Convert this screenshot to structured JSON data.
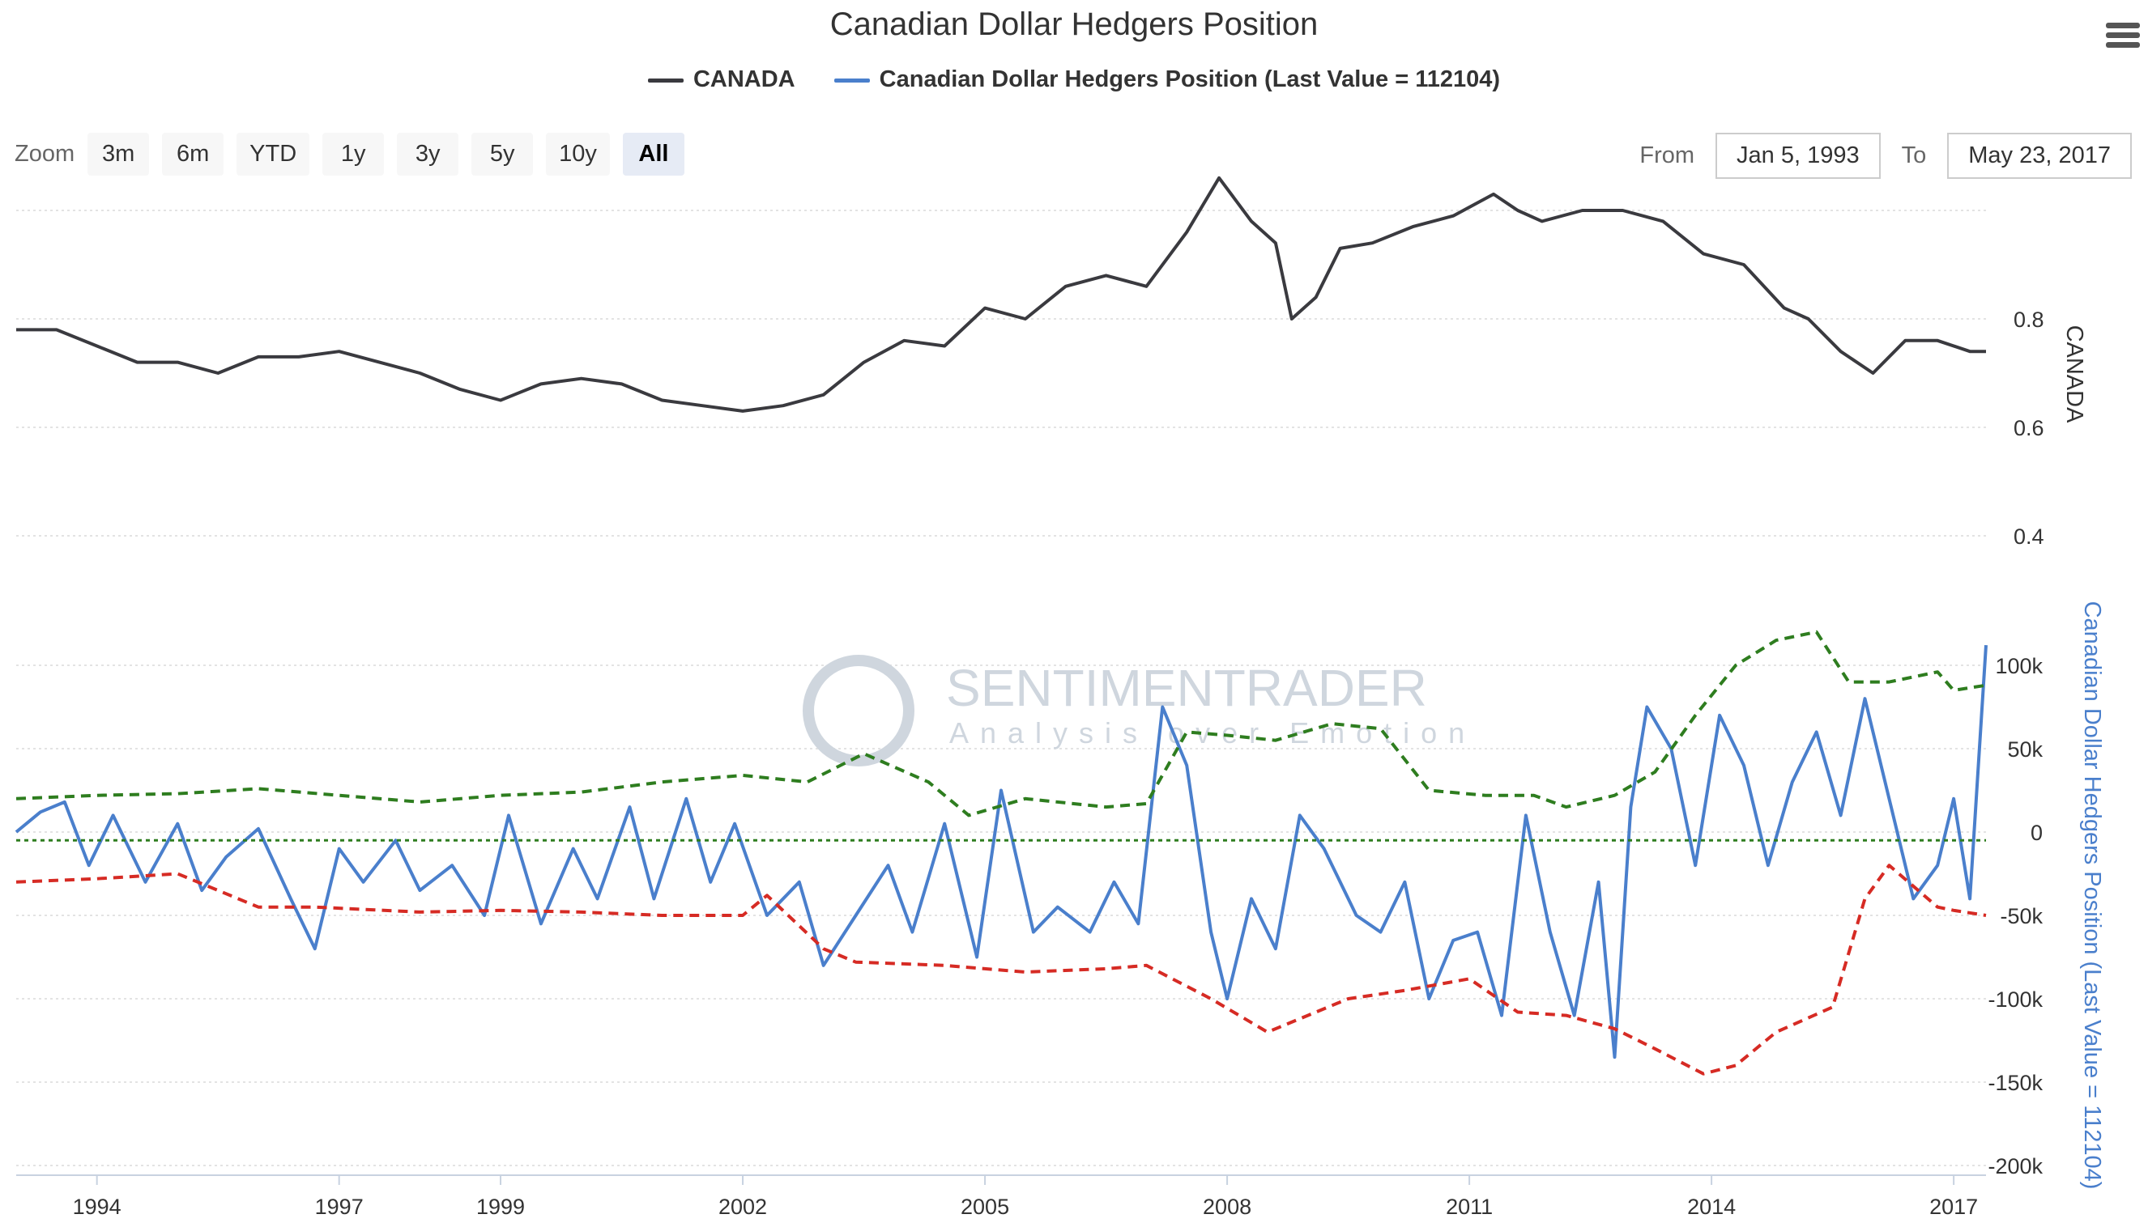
{
  "title": "Canadian Dollar Hedgers Position",
  "legend": [
    {
      "label": "CANADA",
      "color": "#3a3a3f"
    },
    {
      "label": "Canadian Dollar Hedgers Position (Last Value = 112104)",
      "color": "#4a7fcc"
    }
  ],
  "zoom": {
    "label": "Zoom",
    "buttons": [
      "3m",
      "6m",
      "YTD",
      "1y",
      "3y",
      "5y",
      "10y",
      "All"
    ],
    "active": "All"
  },
  "range": {
    "from_label": "From",
    "from_value": "Jan 5, 1993",
    "to_label": "To",
    "to_value": "May 23, 2017"
  },
  "watermark": {
    "name": "SENTIMENTRADER",
    "tagline": "Analysis over Emotion",
    "color": "#cfd6de"
  },
  "chart_data": [
    {
      "type": "line",
      "name": "CANADA",
      "color": "#3a3a3f",
      "y_axis_title": "CANADA",
      "y_ticks": [
        {
          "value": 0.4,
          "label": "0.4"
        },
        {
          "value": 0.6,
          "label": "0.6"
        },
        {
          "value": 0.8,
          "label": "0.8"
        }
      ],
      "ylim": [
        0.4,
        1.0
      ],
      "x": [
        1993.0,
        1993.5,
        1994.0,
        1994.5,
        1995.0,
        1995.5,
        1996.0,
        1996.5,
        1997.0,
        1997.5,
        1998.0,
        1998.5,
        1999.0,
        1999.5,
        2000.0,
        2000.5,
        2001.0,
        2001.5,
        2002.0,
        2002.5,
        2003.0,
        2003.5,
        2004.0,
        2004.5,
        2005.0,
        2005.5,
        2006.0,
        2006.5,
        2007.0,
        2007.5,
        2007.9,
        2008.3,
        2008.6,
        2008.8,
        2009.1,
        2009.4,
        2009.8,
        2010.3,
        2010.8,
        2011.3,
        2011.6,
        2011.9,
        2012.4,
        2012.9,
        2013.4,
        2013.9,
        2014.4,
        2014.9,
        2015.2,
        2015.6,
        2016.0,
        2016.4,
        2016.8,
        2017.2,
        2017.4
      ],
      "y": [
        0.78,
        0.78,
        0.75,
        0.72,
        0.72,
        0.7,
        0.73,
        0.73,
        0.74,
        0.72,
        0.7,
        0.67,
        0.65,
        0.68,
        0.69,
        0.68,
        0.65,
        0.64,
        0.63,
        0.64,
        0.66,
        0.72,
        0.76,
        0.75,
        0.82,
        0.8,
        0.86,
        0.88,
        0.86,
        0.96,
        1.06,
        0.98,
        0.94,
        0.8,
        0.84,
        0.93,
        0.94,
        0.97,
        0.99,
        1.03,
        1.0,
        0.98,
        1.0,
        1.0,
        0.98,
        0.92,
        0.9,
        0.82,
        0.8,
        0.74,
        0.7,
        0.76,
        0.76,
        0.74,
        0.74
      ]
    },
    {
      "type": "line",
      "name": "Canadian Dollar Hedgers Position (Last Value = 112104)",
      "color": "#4a7fcc",
      "y_axis_title": "Canadian Dollar Hedgers Position (Last Value = 112104)",
      "y_ticks": [
        {
          "value": -200000,
          "label": "-200k"
        },
        {
          "value": -150000,
          "label": "-150k"
        },
        {
          "value": -100000,
          "label": "-100k"
        },
        {
          "value": -50000,
          "label": "-50k"
        },
        {
          "value": 0,
          "label": "0"
        },
        {
          "value": 50000,
          "label": "50k"
        },
        {
          "value": 100000,
          "label": "100k"
        }
      ],
      "ylim": [
        -200000,
        100000
      ],
      "last_value": 112104,
      "x": [
        1993.0,
        1993.3,
        1993.6,
        1993.9,
        1994.2,
        1994.6,
        1995.0,
        1995.3,
        1995.6,
        1996.0,
        1996.4,
        1996.7,
        1997.0,
        1997.3,
        1997.7,
        1998.0,
        1998.4,
        1998.8,
        1999.1,
        1999.5,
        1999.9,
        2000.2,
        2000.6,
        2000.9,
        2001.3,
        2001.6,
        2001.9,
        2002.3,
        2002.7,
        2003.0,
        2003.4,
        2003.8,
        2004.1,
        2004.5,
        2004.9,
        2005.2,
        2005.6,
        2005.9,
        2006.3,
        2006.6,
        2006.9,
        2007.2,
        2007.5,
        2007.8,
        2008.0,
        2008.3,
        2008.6,
        2008.9,
        2009.2,
        2009.6,
        2009.9,
        2010.2,
        2010.5,
        2010.8,
        2011.1,
        2011.4,
        2011.7,
        2012.0,
        2012.3,
        2012.6,
        2012.8,
        2013.0,
        2013.2,
        2013.5,
        2013.8,
        2014.1,
        2014.4,
        2014.7,
        2015.0,
        2015.3,
        2015.6,
        2015.9,
        2016.2,
        2016.5,
        2016.8,
        2017.0,
        2017.2,
        2017.4
      ],
      "y": [
        0,
        12000,
        18000,
        -20000,
        10000,
        -30000,
        5000,
        -35000,
        -15000,
        2000,
        -40000,
        -70000,
        -10000,
        -30000,
        -5000,
        -35000,
        -20000,
        -50000,
        10000,
        -55000,
        -10000,
        -40000,
        15000,
        -40000,
        20000,
        -30000,
        5000,
        -50000,
        -30000,
        -80000,
        -50000,
        -20000,
        -60000,
        5000,
        -75000,
        25000,
        -60000,
        -45000,
        -60000,
        -30000,
        -55000,
        75000,
        40000,
        -60000,
        -100000,
        -40000,
        -70000,
        10000,
        -10000,
        -50000,
        -60000,
        -30000,
        -100000,
        -65000,
        -60000,
        -110000,
        10000,
        -60000,
        -110000,
        -30000,
        -135000,
        15000,
        75000,
        50000,
        -20000,
        70000,
        40000,
        -20000,
        30000,
        60000,
        10000,
        80000,
        20000,
        -40000,
        -20000,
        20000,
        -40000,
        112104
      ]
    },
    {
      "type": "line",
      "name": "",
      "style": "dashed",
      "color": "#2e7d1f",
      "axis": "hedgers",
      "x": [
        1993.0,
        1994.0,
        1995.0,
        1996.0,
        1997.0,
        1998.0,
        1999.0,
        2000.0,
        2001.0,
        2002.0,
        2002.8,
        2003.5,
        2004.3,
        2004.8,
        2005.5,
        2006.5,
        2007.0,
        2007.5,
        2008.0,
        2008.6,
        2009.3,
        2009.9,
        2010.5,
        2011.2,
        2011.8,
        2012.2,
        2012.8,
        2013.3,
        2013.8,
        2014.3,
        2014.8,
        2015.3,
        2015.7,
        2016.2,
        2016.8,
        2017.0,
        2017.4
      ],
      "y": [
        20000,
        22000,
        23000,
        26000,
        22000,
        18000,
        22000,
        24000,
        30000,
        34000,
        30000,
        47000,
        30000,
        10000,
        20000,
        15000,
        17000,
        60000,
        58000,
        55000,
        65000,
        62000,
        25000,
        22000,
        22000,
        15000,
        22000,
        36000,
        70000,
        100000,
        115000,
        120000,
        90000,
        90000,
        96000,
        85000,
        88000
      ]
    },
    {
      "type": "line",
      "name": "",
      "style": "dashed",
      "color": "#d62b24",
      "axis": "hedgers",
      "x": [
        1993.0,
        1994.0,
        1995.0,
        1996.0,
        1996.7,
        1998.0,
        1999.0,
        2000.0,
        2001.0,
        2002.0,
        2002.3,
        2003.0,
        2003.4,
        2004.5,
        2005.5,
        2006.5,
        2007.0,
        2007.8,
        2008.5,
        2009.5,
        2010.2,
        2011.0,
        2011.6,
        2012.2,
        2012.8,
        2013.3,
        2013.9,
        2014.3,
        2014.8,
        2015.5,
        2015.9,
        2016.2,
        2016.8,
        2017.0,
        2017.4
      ],
      "y": [
        -30000,
        -28000,
        -25000,
        -45000,
        -45000,
        -48000,
        -47000,
        -48000,
        -50000,
        -50000,
        -38000,
        -70000,
        -78000,
        -80000,
        -84000,
        -82000,
        -80000,
        -100000,
        -120000,
        -100000,
        -95000,
        -88000,
        -108000,
        -110000,
        -118000,
        -130000,
        -145000,
        -140000,
        -120000,
        -105000,
        -40000,
        -20000,
        -45000,
        -47000,
        -50000
      ]
    },
    {
      "type": "line",
      "name": "",
      "style": "dotted",
      "color": "#2e7d1f",
      "axis": "hedgers",
      "x": [
        1993.0,
        2017.4
      ],
      "y": [
        -5000,
        -5000
      ]
    }
  ],
  "x_ticks": [
    {
      "value": 1994,
      "label": "1994"
    },
    {
      "value": 1997,
      "label": "1997"
    },
    {
      "value": 1999,
      "label": "1999"
    },
    {
      "value": 2002,
      "label": "2002"
    },
    {
      "value": 2005,
      "label": "2005"
    },
    {
      "value": 2008,
      "label": "2008"
    },
    {
      "value": 2011,
      "label": "2011"
    },
    {
      "value": 2014,
      "label": "2014"
    },
    {
      "value": 2017,
      "label": "2017"
    }
  ]
}
